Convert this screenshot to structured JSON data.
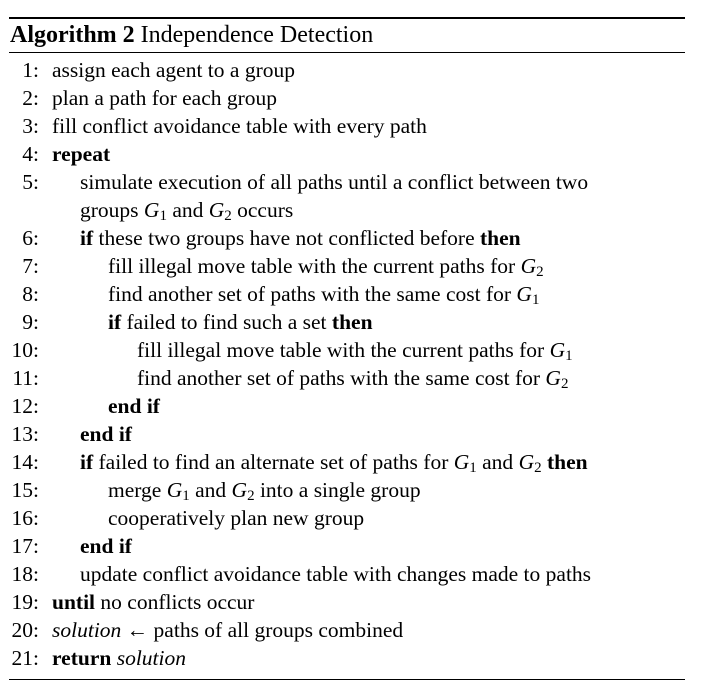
{
  "algorithm": {
    "label": "Algorithm 2",
    "title": "Independence Detection"
  },
  "lines": {
    "n1": "1:",
    "t1": "assign each agent to a group",
    "n2": "2:",
    "t2": "plan a path for each group",
    "n3": "3:",
    "t3": "fill conflict avoidance table with every path",
    "n4": "4:",
    "k4": "repeat",
    "n5": "5:",
    "t5a": "simulate execution of all paths until a conflict between two",
    "t5b_pre": "groups",
    "g1": "G",
    "s1": "1",
    "and": "and",
    "g2": "G",
    "s2": "2",
    "t5b_post": "occurs",
    "n6": "6:",
    "k6a": "if",
    "t6": "these two groups have not conflicted before",
    "k6b": "then",
    "n7": "7:",
    "t7": "fill illegal move table with the current paths for",
    "g7": "G",
    "s7": "2",
    "n8": "8:",
    "t8": "find another set of paths with the same cost for",
    "g8": "G",
    "s8": "1",
    "n9": "9:",
    "k9a": "if",
    "t9": "failed to find such a set",
    "k9b": "then",
    "n10": "10:",
    "t10": "fill illegal move table with the current paths for",
    "g10": "G",
    "s10": "1",
    "n11": "11:",
    "t11": "find another set of paths with the same cost for",
    "g11": "G",
    "s11": "2",
    "n12": "12:",
    "k12": "end if",
    "n13": "13:",
    "k13": "end if",
    "n14": "14:",
    "k14a": "if",
    "t14": "failed to find an alternate set of paths for",
    "g14a": "G",
    "s14a": "1",
    "and14": "and",
    "g14b": "G",
    "s14b": "2",
    "k14b": "then",
    "n15": "15:",
    "t15a": "merge",
    "g15a": "G",
    "s15a": "1",
    "and15": "and",
    "g15b": "G",
    "s15b": "2",
    "t15b": "into a single group",
    "n16": "16:",
    "t16": "cooperatively plan new group",
    "n17": "17:",
    "k17": "end if",
    "n18": "18:",
    "t18": "update conflict avoidance table with changes made to paths",
    "n19": "19:",
    "k19": "until",
    "t19": "no conflicts occur",
    "n20": "20:",
    "v20": "solution",
    "arrow": "←",
    "t20": "paths of all groups combined",
    "n21": "21:",
    "k21": "return",
    "v21": "solution"
  }
}
